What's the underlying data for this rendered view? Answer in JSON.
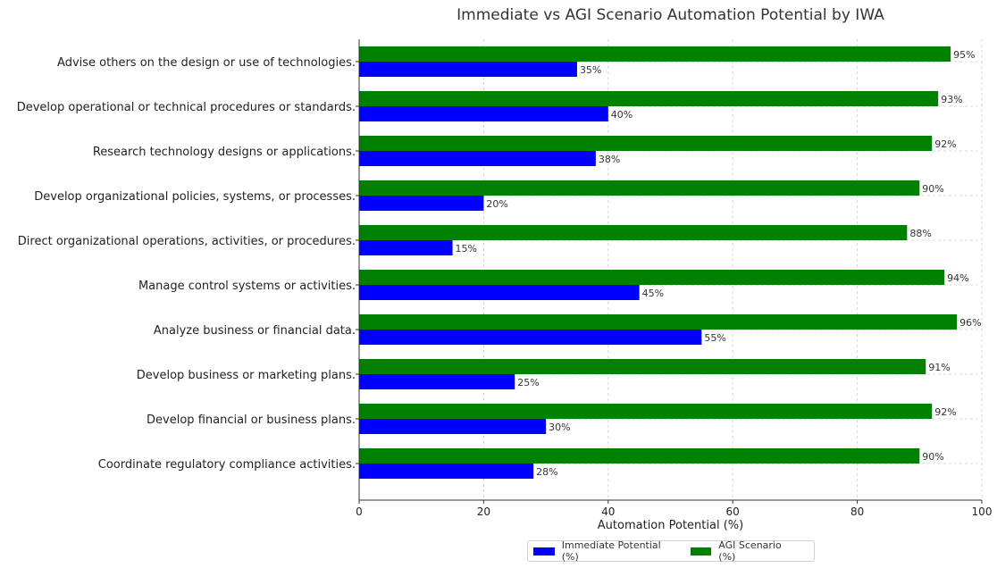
{
  "chart_data": {
    "type": "bar",
    "orientation": "horizontal",
    "title": "Immediate vs AGI Scenario Automation Potential by IWA",
    "xlabel": "Automation Potential (%)",
    "ylabel": "",
    "xlim": [
      0,
      100
    ],
    "xticks": [
      "0",
      "20",
      "40",
      "60",
      "80",
      "100"
    ],
    "grid": true,
    "legend_position": "bottom-center",
    "categories": [
      "Advise others on the design or use of technologies.",
      "Develop operational or technical procedures or standards.",
      "Research technology designs or applications.",
      "Develop organizational policies, systems, or processes.",
      "Direct organizational operations, activities, or procedures.",
      "Manage control systems or activities.",
      "Analyze business or financial data.",
      "Develop business or marketing plans.",
      "Develop financial or business plans.",
      "Coordinate regulatory compliance activities."
    ],
    "series": [
      {
        "name": "Immediate Potential (%)",
        "color": "#0000ff",
        "values": [
          35,
          40,
          38,
          20,
          15,
          45,
          55,
          25,
          30,
          28
        ]
      },
      {
        "name": "AGI Scenario (%)",
        "color": "#008000",
        "values": [
          95,
          93,
          92,
          90,
          88,
          94,
          96,
          91,
          92,
          90
        ]
      }
    ]
  }
}
